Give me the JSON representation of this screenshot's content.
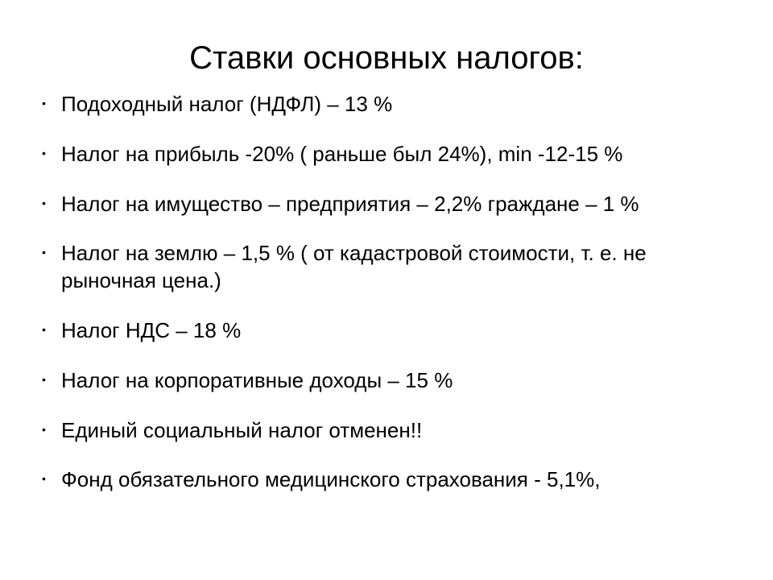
{
  "slide": {
    "title": "Ставки основных налогов:",
    "background_color": "#ffffff",
    "text_color": "#000000",
    "title_fontsize": 40,
    "item_fontsize": 26,
    "bullet_color": "#000000",
    "items": [
      "Подоходный налог (НДФЛ) – 13 %",
      "Налог на прибыль -20% ( раньше был 24%), min -12-15 %",
      "Налог на имущество – предприятия – 2,2%  граждане – 1 %",
      "Налог на землю – 1,5 % ( от кадастровой стоимости, т. е. не рыночная цена.)",
      "Налог НДС – 18 %",
      "Налог на корпоративные доходы – 15 %",
      "Единый социальный налог отменен!!",
      "Фонд обязательного медицинского страхования - 5,1%,"
    ]
  }
}
